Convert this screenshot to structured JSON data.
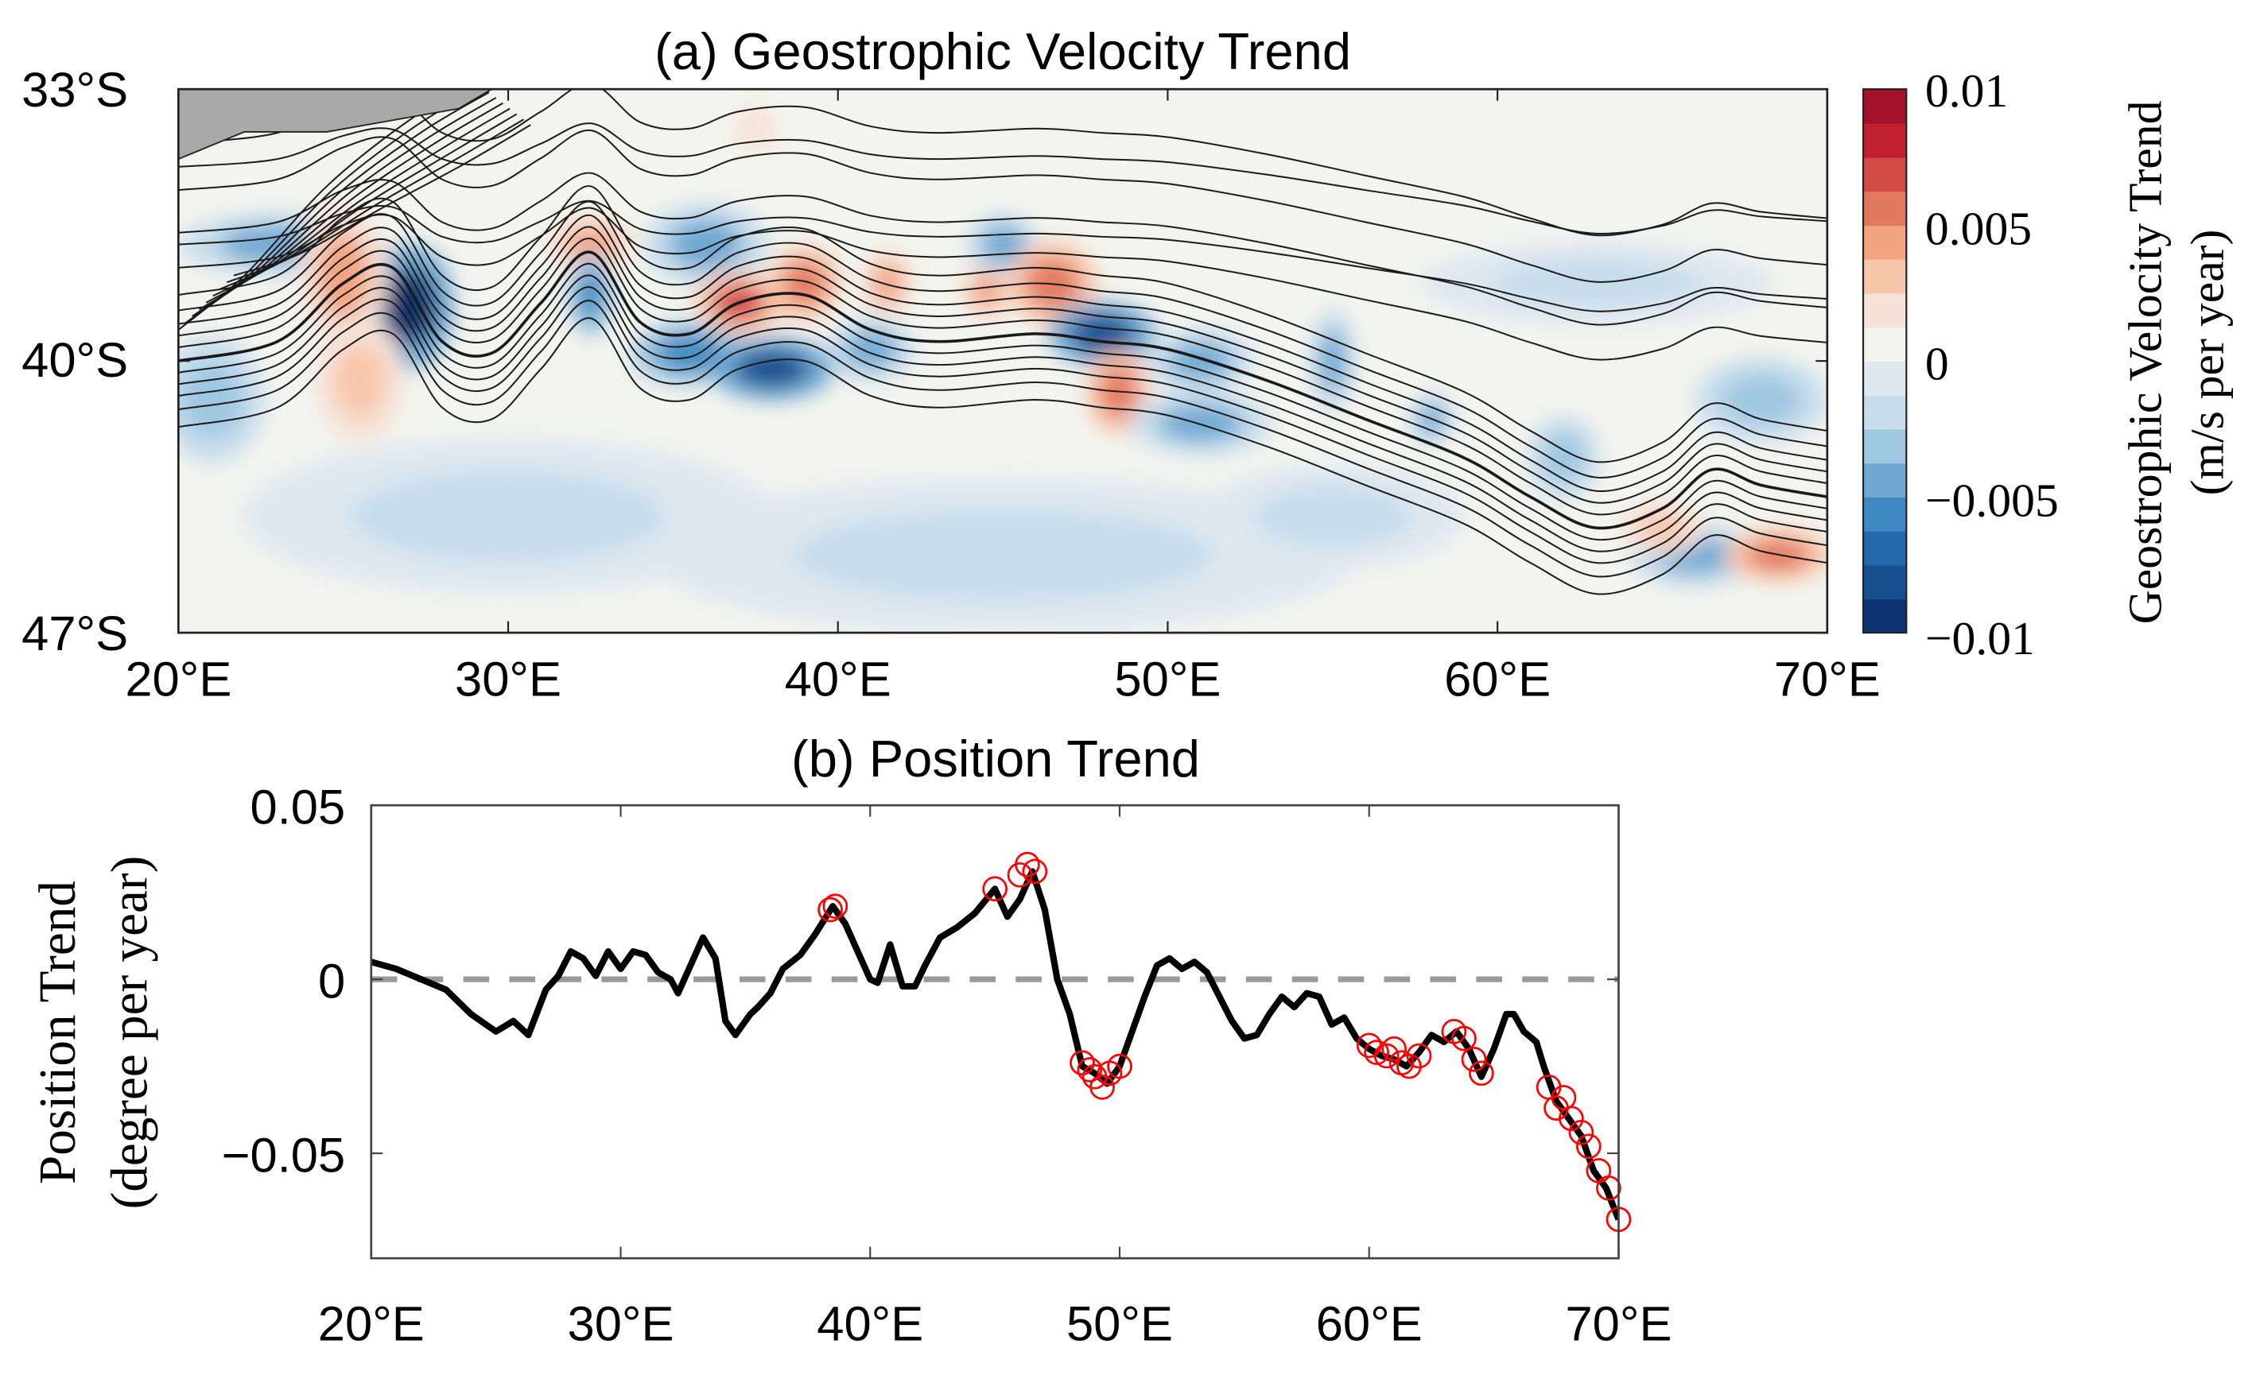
{
  "chart_data": [
    {
      "type": "heatmap",
      "title": "(a) Geostrophic Velocity Trend",
      "xlabel": "",
      "ylabel": "",
      "x_ticks": [
        "20°E",
        "30°E",
        "40°E",
        "50°E",
        "60°E",
        "70°E"
      ],
      "x_tick_values": [
        20,
        30,
        40,
        50,
        60,
        70
      ],
      "y_ticks": [
        "33°S",
        "40°S",
        "47°S"
      ],
      "y_tick_values": [
        -33,
        -40,
        -47
      ],
      "xlim": [
        20,
        70
      ],
      "ylim": [
        -47,
        -33
      ],
      "colorbar": {
        "label_line1": "Geostrophic Velocity Trend",
        "label_line2": "(m/s per year)",
        "ticks": [
          "0.01",
          "0.005",
          "0",
          "−0.005",
          "−0.01"
        ],
        "tick_values": [
          0.01,
          0.005,
          0,
          -0.005,
          -0.01
        ],
        "range": [
          -0.01,
          0.01
        ],
        "levels": 16,
        "colors": [
          "#0b3470",
          "#17508f",
          "#2469ac",
          "#3f8ac2",
          "#6fa9d2",
          "#9fc7e1",
          "#c7ddec",
          "#dfe8f0",
          "#f3f4ef",
          "#f6e3d8",
          "#f8c6ab",
          "#f3a481",
          "#e2795e",
          "#d44b46",
          "#c1202f",
          "#a3122a"
        ]
      },
      "land_color": "#a8a8a8",
      "features": [
        {
          "lon": 23,
          "lat": -37,
          "value": -0.005,
          "rlon": 2.2,
          "rlat": 0.6
        },
        {
          "lon": 27,
          "lat": -38.6,
          "value": -0.009,
          "rlon": 1,
          "rlat": 1.2
        },
        {
          "lon": 25,
          "lat": -37.8,
          "value": 0.004,
          "rlon": 1,
          "rlat": 1.4
        },
        {
          "lon": 25.5,
          "lat": -40.5,
          "value": 0.003,
          "rlon": 1,
          "rlat": 1.2
        },
        {
          "lon": 32.5,
          "lat": -37,
          "value": 0.004,
          "rlon": 1,
          "rlat": 0.6
        },
        {
          "lon": 32.5,
          "lat": -38.3,
          "value": -0.006,
          "rlon": 0.5,
          "rlat": 0.8
        },
        {
          "lon": 35.5,
          "lat": -39.8,
          "value": -0.006,
          "rlon": 1.3,
          "rlat": 0.6
        },
        {
          "lon": 38,
          "lat": -40.2,
          "value": -0.008,
          "rlon": 1.4,
          "rlat": 0.6
        },
        {
          "lon": 36,
          "lat": -37,
          "value": -0.005,
          "rlon": 1.4,
          "rlat": 0.8
        },
        {
          "lon": 37,
          "lat": -38.5,
          "value": 0.007,
          "rlon": 1,
          "rlat": 0.6
        },
        {
          "lon": 39,
          "lat": -38,
          "value": 0.005,
          "rlon": 0.8,
          "rlat": 0.7
        },
        {
          "lon": 41,
          "lat": -39.7,
          "value": -0.005,
          "rlon": 1,
          "rlat": 0.6
        },
        {
          "lon": 41.5,
          "lat": -38,
          "value": 0.004,
          "rlon": 0.6,
          "rlat": 0.7
        },
        {
          "lon": 44.5,
          "lat": -38.2,
          "value": 0.004,
          "rlon": 0.6,
          "rlat": 0.6
        },
        {
          "lon": 45,
          "lat": -37,
          "value": -0.004,
          "rlon": 0.8,
          "rlat": 0.6
        },
        {
          "lon": 46.5,
          "lat": -38,
          "value": 0.006,
          "rlon": 1,
          "rlat": 0.8
        },
        {
          "lon": 48,
          "lat": -39.3,
          "value": -0.008,
          "rlon": 1.2,
          "rlat": 0.6
        },
        {
          "lon": 48.5,
          "lat": -40.8,
          "value": 0.005,
          "rlon": 0.7,
          "rlat": 0.8
        },
        {
          "lon": 51,
          "lat": -40,
          "value": -0.005,
          "rlon": 1.2,
          "rlat": 0.6
        },
        {
          "lon": 51,
          "lat": -41.6,
          "value": -0.005,
          "rlon": 1.6,
          "rlat": 0.6
        },
        {
          "lon": 55,
          "lat": -40,
          "value": -0.004,
          "rlon": 0.5,
          "rlat": 1
        },
        {
          "lon": 58,
          "lat": -41.5,
          "value": -0.004,
          "rlon": 0.5,
          "rlat": 0.5
        },
        {
          "lon": 62,
          "lat": -42.5,
          "value": -0.003,
          "rlon": 0.8,
          "rlat": 0.8
        },
        {
          "lon": 63,
          "lat": -38,
          "value": -0.002,
          "rlon": 4,
          "rlat": 0.8
        },
        {
          "lon": 68,
          "lat": -41,
          "value": -0.003,
          "rlon": 1.5,
          "rlat": 0.8
        },
        {
          "lon": 66,
          "lat": -45,
          "value": -0.004,
          "rlon": 1.5,
          "rlat": 0.6
        },
        {
          "lon": 65,
          "lat": -44.3,
          "value": 0.003,
          "rlon": 1,
          "rlat": 0.5
        },
        {
          "lon": 68.5,
          "lat": -45,
          "value": 0.005,
          "rlon": 1.2,
          "rlat": 0.5
        },
        {
          "lon": 37.5,
          "lat": -34,
          "value": 0.002,
          "rlon": 0.8,
          "rlat": 0.8
        },
        {
          "lon": 21,
          "lat": -41,
          "value": -0.003,
          "rlon": 1.2,
          "rlat": 1.2
        },
        {
          "lon": 30,
          "lat": -44,
          "value": -0.002,
          "rlon": 6,
          "rlat": 1.5
        },
        {
          "lon": 45,
          "lat": -45,
          "value": -0.002,
          "rlon": 8,
          "rlat": 1.5
        },
        {
          "lon": 55,
          "lat": -44,
          "value": -0.002,
          "rlon": 3,
          "rlat": 1
        }
      ],
      "front_axis": {
        "lon": [
          20,
          23,
          25,
          26.5,
          28,
          29.5,
          31,
          32.5,
          34,
          35.5,
          37,
          39,
          41,
          43,
          46,
          48,
          50,
          53,
          56,
          59,
          61,
          63,
          65,
          66.5,
          68,
          70
        ],
        "lat": [
          -40,
          -39.5,
          -38,
          -37.6,
          -39.5,
          -39.8,
          -38.5,
          -37.2,
          -39,
          -39.3,
          -38.5,
          -38.3,
          -39.2,
          -39.5,
          -39.3,
          -39.5,
          -39.7,
          -40.5,
          -41.5,
          -42.5,
          -43.5,
          -44.3,
          -43.8,
          -42.8,
          -43.2,
          -43.5
        ]
      }
    },
    {
      "type": "line",
      "title": "(b) Position Trend",
      "xlabel": "",
      "ylabel_line1": "Position Trend",
      "ylabel_line2": "(degree per year)",
      "xlim": [
        20,
        70
      ],
      "ylim": [
        -0.08,
        0.05
      ],
      "x_ticks": [
        "20°E",
        "30°E",
        "40°E",
        "50°E",
        "60°E",
        "70°E"
      ],
      "x_tick_values": [
        20,
        30,
        40,
        50,
        60,
        70
      ],
      "y_ticks": [
        "0.05",
        "0",
        "−0.05"
      ],
      "y_tick_values": [
        0.05,
        0,
        -0.05
      ],
      "reference_line": {
        "y": 0,
        "style": "dashed",
        "color": "#999999"
      },
      "series": [
        {
          "name": "Position trend",
          "color": "#000000",
          "x": [
            20,
            21,
            22,
            23,
            24,
            25,
            25.7,
            26.3,
            27,
            27.5,
            28,
            28.5,
            29,
            29.5,
            30,
            30.5,
            31,
            31.5,
            32,
            32.3,
            32.8,
            33.3,
            33.8,
            34.2,
            34.6,
            35.2,
            35.5,
            36,
            36.5,
            37.2,
            37.8,
            38.5,
            39,
            39.5,
            40,
            40.3,
            40.8,
            41.3,
            41.8,
            42.2,
            42.8,
            43.5,
            44.2,
            45,
            45.5,
            46,
            46.5,
            47,
            47.5,
            48,
            48.5,
            49,
            49.5,
            50,
            50.5,
            51,
            51.5,
            52,
            52.5,
            53,
            53.5,
            54,
            54.5,
            55,
            55.5,
            56,
            56.5,
            57,
            57.5,
            58,
            58.5,
            59,
            59.5,
            60,
            60.5,
            61,
            61.5,
            62,
            62.5,
            63,
            63.5,
            64,
            64.5,
            65,
            65.5,
            65.8,
            66.2,
            66.7,
            67,
            67.5,
            68,
            68.5,
            69,
            69.5,
            70
          ],
          "y": [
            0.005,
            0.003,
            0.0,
            -0.003,
            -0.01,
            -0.015,
            -0.012,
            -0.016,
            -0.003,
            0.001,
            0.008,
            0.006,
            0.001,
            0.008,
            0.003,
            0.008,
            0.007,
            0.002,
            0.0,
            -0.004,
            0.004,
            0.012,
            0.006,
            -0.012,
            -0.016,
            -0.01,
            -0.008,
            -0.004,
            0.003,
            0.007,
            0.013,
            0.021,
            0.016,
            0.008,
            0.0,
            -0.001,
            0.01,
            -0.002,
            -0.002,
            0.004,
            0.012,
            0.015,
            0.019,
            0.026,
            0.018,
            0.023,
            0.031,
            0.02,
            0.0,
            -0.01,
            -0.025,
            -0.027,
            -0.03,
            -0.025,
            -0.015,
            -0.005,
            0.004,
            0.006,
            0.003,
            0.005,
            0.002,
            -0.005,
            -0.012,
            -0.017,
            -0.016,
            -0.01,
            -0.005,
            -0.008,
            -0.004,
            -0.005,
            -0.013,
            -0.011,
            -0.017,
            -0.02,
            -0.022,
            -0.023,
            -0.025,
            -0.021,
            -0.016,
            -0.018,
            -0.015,
            -0.02,
            -0.028,
            -0.02,
            -0.01,
            -0.01,
            -0.015,
            -0.018,
            -0.025,
            -0.035,
            -0.04,
            -0.045,
            -0.055,
            -0.06,
            -0.069
          ]
        }
      ],
      "significant_markers": {
        "color": "#ff0000",
        "x": [
          38.4,
          38.6,
          45.0,
          46.0,
          46.3,
          46.6,
          48.5,
          48.8,
          49.0,
          49.3,
          49.6,
          50.0,
          60.0,
          60.3,
          60.7,
          61.0,
          61.3,
          61.6,
          62.0,
          63.4,
          63.8,
          64.2,
          64.5,
          67.2,
          67.5,
          67.8,
          68.1,
          68.5,
          68.8,
          69.2,
          69.6,
          70.0
        ],
        "y": [
          0.02,
          0.021,
          0.026,
          0.03,
          0.033,
          0.031,
          -0.024,
          -0.026,
          -0.028,
          -0.031,
          -0.027,
          -0.025,
          -0.019,
          -0.021,
          -0.022,
          -0.02,
          -0.024,
          -0.025,
          -0.022,
          -0.015,
          -0.017,
          -0.023,
          -0.027,
          -0.031,
          -0.037,
          -0.034,
          -0.04,
          -0.044,
          -0.048,
          -0.055,
          -0.06,
          -0.069
        ]
      }
    }
  ]
}
